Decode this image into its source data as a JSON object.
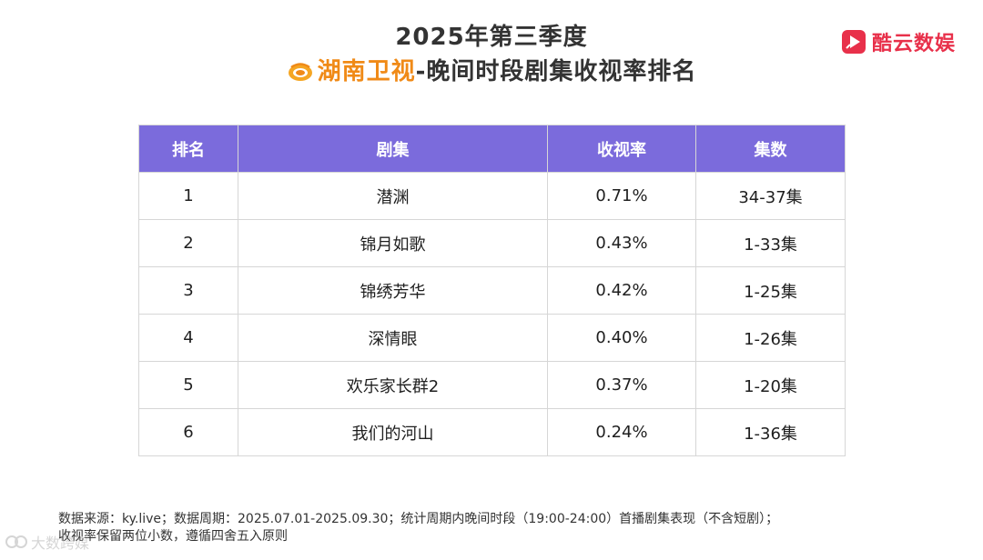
{
  "header": {
    "title_line1": "2025年第三季度",
    "channel_name": "湖南卫视",
    "title_line2_rest": "-晚间时段剧集收视率排名",
    "channel_color": "#f08a17"
  },
  "brand": {
    "name": "酷云数娱",
    "icon": "play-triangle-icon",
    "color": "#e8304a"
  },
  "table": {
    "header_color": "#7b6bdc",
    "columns": [
      "排名",
      "剧集",
      "收视率",
      "集数"
    ],
    "rows": [
      {
        "rank": "1",
        "title": "潜渊",
        "rating": "0.71%",
        "episodes": "34-37集"
      },
      {
        "rank": "2",
        "title": "锦月如歌",
        "rating": "0.43%",
        "episodes": "1-33集"
      },
      {
        "rank": "3",
        "title": "锦绣芳华",
        "rating": "0.42%",
        "episodes": "1-25集"
      },
      {
        "rank": "4",
        "title": "深情眼",
        "rating": "0.40%",
        "episodes": "1-26集"
      },
      {
        "rank": "5",
        "title": "欢乐家长群2",
        "rating": "0.37%",
        "episodes": "1-20集"
      },
      {
        "rank": "6",
        "title": "我们的河山",
        "rating": "0.24%",
        "episodes": "1-36集"
      }
    ]
  },
  "footnote": {
    "line1": "数据来源：ky.live；数据周期：2025.07.01-2025.09.30；统计周期内晚间时段（19:00-24:00）首播剧集表现（不含短剧）；",
    "line2": "收视率保留两位小数，遵循四舍五入原则"
  },
  "watermark": {
    "text": "大数跨媒",
    "icon": "watermark-logo-icon"
  }
}
